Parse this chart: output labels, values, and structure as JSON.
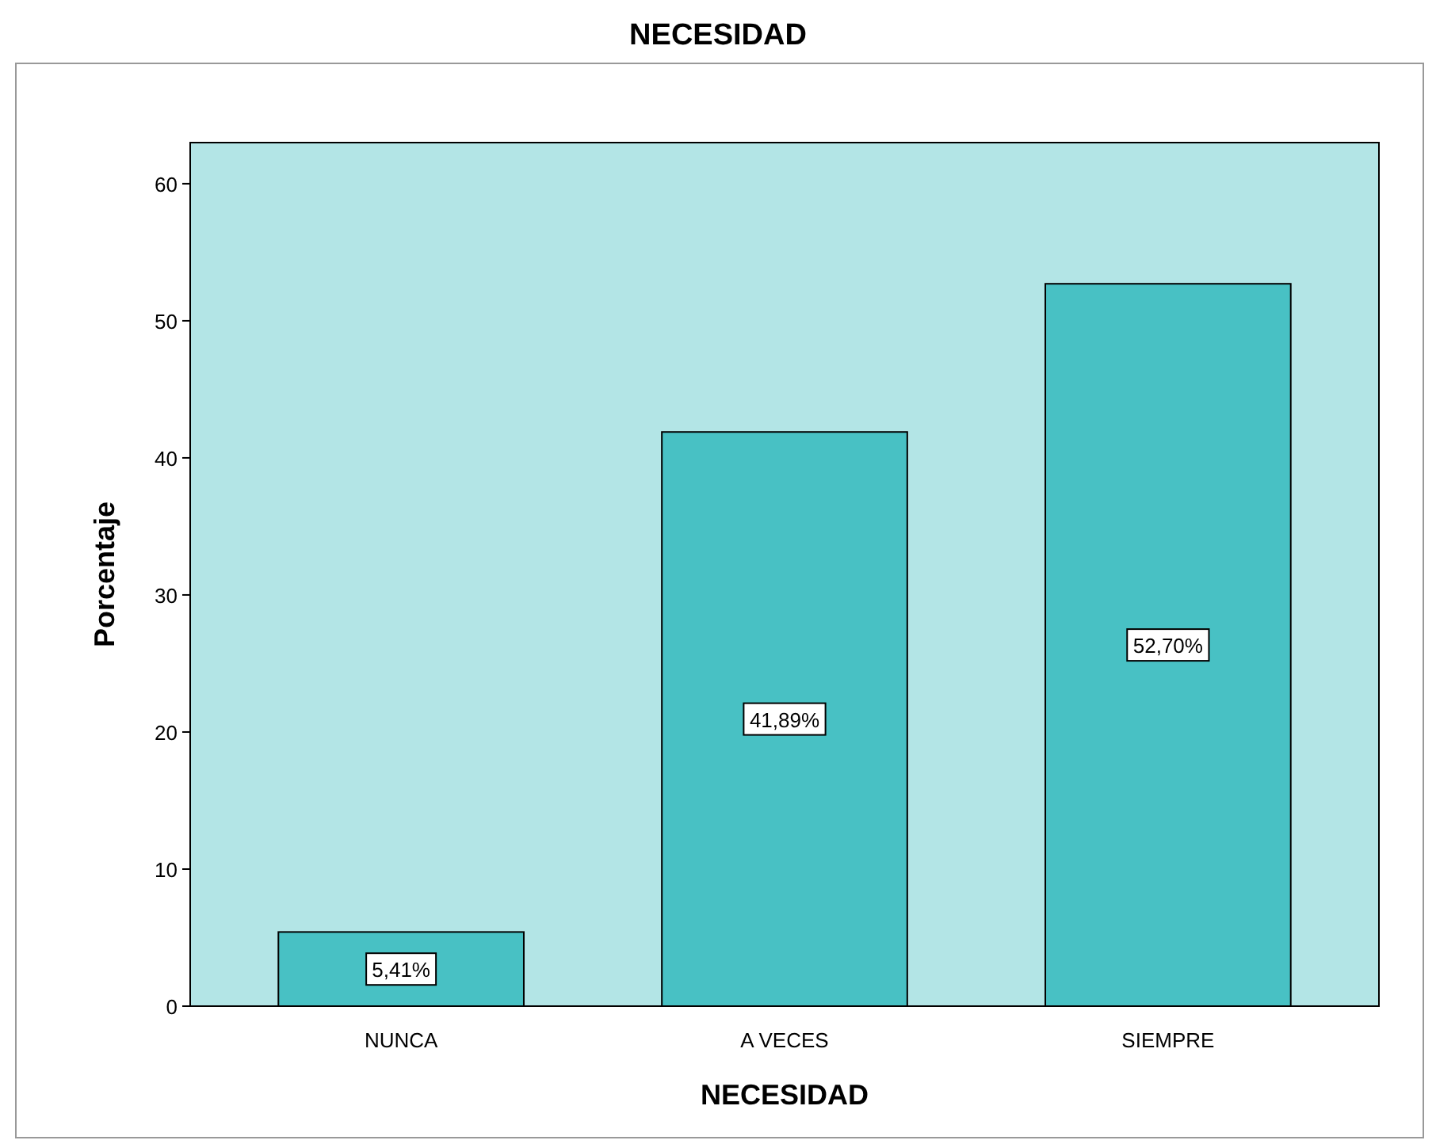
{
  "chart_data": {
    "type": "bar",
    "title": "NECESIDAD",
    "xlabel": "NECESIDAD",
    "ylabel": "Porcentaje",
    "categories": [
      "NUNCA",
      "A VECES",
      "SIEMPRE"
    ],
    "values": [
      5.41,
      41.89,
      52.7
    ],
    "value_labels": [
      "5,41%",
      "41,89%",
      "52,70%"
    ],
    "color": "#48c1c4",
    "ylim": [
      0,
      63
    ],
    "yticks": [
      0,
      10,
      20,
      30,
      40,
      50,
      60
    ],
    "grid": false
  }
}
